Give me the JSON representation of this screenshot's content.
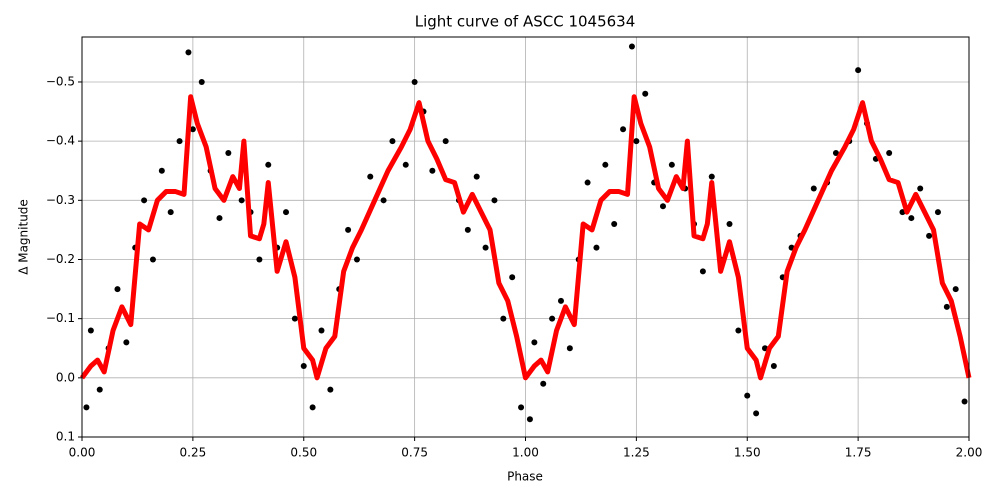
{
  "chart_data": {
    "type": "scatter",
    "title": "Light curve of ASCC 1045634",
    "xlabel": "Phase",
    "ylabel": "Δ Magnitude",
    "xlim": [
      0,
      2
    ],
    "ylim": [
      0.1,
      -0.576
    ],
    "xticks": [
      {
        "value": 0,
        "label": "0.00"
      },
      0.25,
      {
        "value": 0.5,
        "label": "0.50"
      },
      0.75,
      {
        "value": 1,
        "label": "1.00"
      },
      1.25,
      {
        "value": 1.5,
        "label": "1.50"
      },
      1.75,
      {
        "value": 2,
        "label": "2.00"
      }
    ],
    "yticks": [
      {
        "value": -0.5,
        "label": "−0.5"
      },
      {
        "value": -0.4,
        "label": "−0.4"
      },
      {
        "value": -0.3,
        "label": "−0.3"
      },
      {
        "value": -0.2,
        "label": "−0.2"
      },
      {
        "value": -0.1,
        "label": "−0.1"
      },
      {
        "value": 0,
        "label": "0.0"
      },
      0.1
    ],
    "grid": true,
    "series": [
      {
        "type": "scatter",
        "color": "#000000",
        "x": [
          0.01,
          0.02,
          0.04,
          0.06,
          0.08,
          0.1,
          0.12,
          0.14,
          0.16,
          0.18,
          0.2,
          0.22,
          0.24,
          0.25,
          0.27,
          0.29,
          0.31,
          0.33,
          0.36,
          0.38,
          0.4,
          0.42,
          0.44,
          0.46,
          0.48,
          0.5,
          0.52,
          0.54,
          0.56,
          0.58,
          0.6,
          0.62,
          0.65,
          0.68,
          0.7,
          0.73,
          0.75,
          0.77,
          0.79,
          0.82,
          0.85,
          0.87,
          0.89,
          0.91,
          0.93,
          0.95,
          0.97,
          0.99,
          1.01,
          1.02,
          1.04,
          1.06,
          1.08,
          1.1,
          1.12,
          1.14,
          1.16,
          1.18,
          1.2,
          1.22,
          1.24,
          1.25,
          1.27,
          1.29,
          1.31,
          1.33,
          1.36,
          1.38,
          1.4,
          1.42,
          1.44,
          1.46,
          1.48,
          1.5,
          1.52,
          1.54,
          1.56,
          1.58,
          1.6,
          1.62,
          1.65,
          1.68,
          1.7,
          1.73,
          1.75,
          1.77,
          1.79,
          1.82,
          1.85,
          1.87,
          1.89,
          1.91,
          1.93,
          1.95,
          1.97,
          1.99
        ],
        "values": [
          0.05,
          -0.08,
          0.02,
          -0.05,
          -0.15,
          -0.06,
          -0.22,
          -0.3,
          -0.2,
          -0.35,
          -0.28,
          -0.4,
          -0.55,
          -0.42,
          -0.5,
          -0.35,
          -0.27,
          -0.38,
          -0.3,
          -0.28,
          -0.2,
          -0.36,
          -0.22,
          -0.28,
          -0.1,
          -0.02,
          0.05,
          -0.08,
          0.02,
          -0.15,
          -0.25,
          -0.2,
          -0.34,
          -0.3,
          -0.4,
          -0.36,
          -0.5,
          -0.45,
          -0.35,
          -0.4,
          -0.3,
          -0.25,
          -0.34,
          -0.22,
          -0.3,
          -0.1,
          -0.17,
          0.05,
          0.07,
          -0.06,
          0.01,
          -0.1,
          -0.13,
          -0.05,
          -0.2,
          -0.33,
          -0.22,
          -0.36,
          -0.26,
          -0.42,
          -0.56,
          -0.4,
          -0.48,
          -0.33,
          -0.29,
          -0.36,
          -0.32,
          -0.26,
          -0.18,
          -0.34,
          -0.2,
          -0.26,
          -0.08,
          0.03,
          0.06,
          -0.05,
          -0.02,
          -0.17,
          -0.22,
          -0.24,
          -0.32,
          -0.33,
          -0.38,
          -0.4,
          -0.52,
          -0.43,
          -0.37,
          -0.38,
          -0.28,
          -0.27,
          -0.32,
          -0.24,
          -0.28,
          -0.12,
          -0.15,
          0.04
        ]
      },
      {
        "type": "line",
        "color": "#ff0000",
        "x": [
          0.0,
          0.02,
          0.035,
          0.05,
          0.07,
          0.09,
          0.11,
          0.13,
          0.15,
          0.17,
          0.19,
          0.21,
          0.23,
          0.245,
          0.26,
          0.28,
          0.3,
          0.32,
          0.34,
          0.355,
          0.365,
          0.38,
          0.4,
          0.41,
          0.42,
          0.44,
          0.46,
          0.48,
          0.5,
          0.52,
          0.53,
          0.55,
          0.57,
          0.59,
          0.61,
          0.63,
          0.66,
          0.69,
          0.72,
          0.74,
          0.76,
          0.78,
          0.8,
          0.82,
          0.84,
          0.86,
          0.88,
          0.9,
          0.92,
          0.94,
          0.96,
          0.98,
          1.0,
          1.02,
          1.035,
          1.05,
          1.07,
          1.09,
          1.11,
          1.13,
          1.15,
          1.17,
          1.19,
          1.21,
          1.23,
          1.245,
          1.26,
          1.28,
          1.3,
          1.32,
          1.34,
          1.355,
          1.365,
          1.38,
          1.4,
          1.41,
          1.42,
          1.44,
          1.46,
          1.48,
          1.5,
          1.52,
          1.53,
          1.55,
          1.57,
          1.59,
          1.61,
          1.63,
          1.66,
          1.69,
          1.72,
          1.74,
          1.76,
          1.78,
          1.8,
          1.82,
          1.84,
          1.86,
          1.88,
          1.9,
          1.92,
          1.94,
          1.96,
          1.98,
          2.0
        ],
        "values": [
          0.0,
          -0.02,
          -0.03,
          -0.01,
          -0.08,
          -0.12,
          -0.09,
          -0.26,
          -0.25,
          -0.3,
          -0.315,
          -0.315,
          -0.31,
          -0.475,
          -0.43,
          -0.39,
          -0.32,
          -0.3,
          -0.34,
          -0.32,
          -0.4,
          -0.24,
          -0.235,
          -0.26,
          -0.33,
          -0.18,
          -0.23,
          -0.17,
          -0.05,
          -0.03,
          0.0,
          -0.05,
          -0.07,
          -0.18,
          -0.22,
          -0.25,
          -0.3,
          -0.35,
          -0.39,
          -0.42,
          -0.465,
          -0.4,
          -0.37,
          -0.335,
          -0.33,
          -0.28,
          -0.31,
          -0.28,
          -0.25,
          -0.16,
          -0.13,
          -0.07,
          0.0,
          -0.02,
          -0.03,
          -0.01,
          -0.08,
          -0.12,
          -0.09,
          -0.26,
          -0.25,
          -0.3,
          -0.315,
          -0.315,
          -0.31,
          -0.475,
          -0.43,
          -0.39,
          -0.32,
          -0.3,
          -0.34,
          -0.32,
          -0.4,
          -0.24,
          -0.235,
          -0.26,
          -0.33,
          -0.18,
          -0.23,
          -0.17,
          -0.05,
          -0.03,
          0.0,
          -0.05,
          -0.07,
          -0.18,
          -0.22,
          -0.25,
          -0.3,
          -0.35,
          -0.39,
          -0.42,
          -0.465,
          -0.4,
          -0.37,
          -0.335,
          -0.33,
          -0.28,
          -0.31,
          -0.28,
          -0.25,
          -0.16,
          -0.13,
          -0.07,
          0.0
        ]
      }
    ]
  }
}
